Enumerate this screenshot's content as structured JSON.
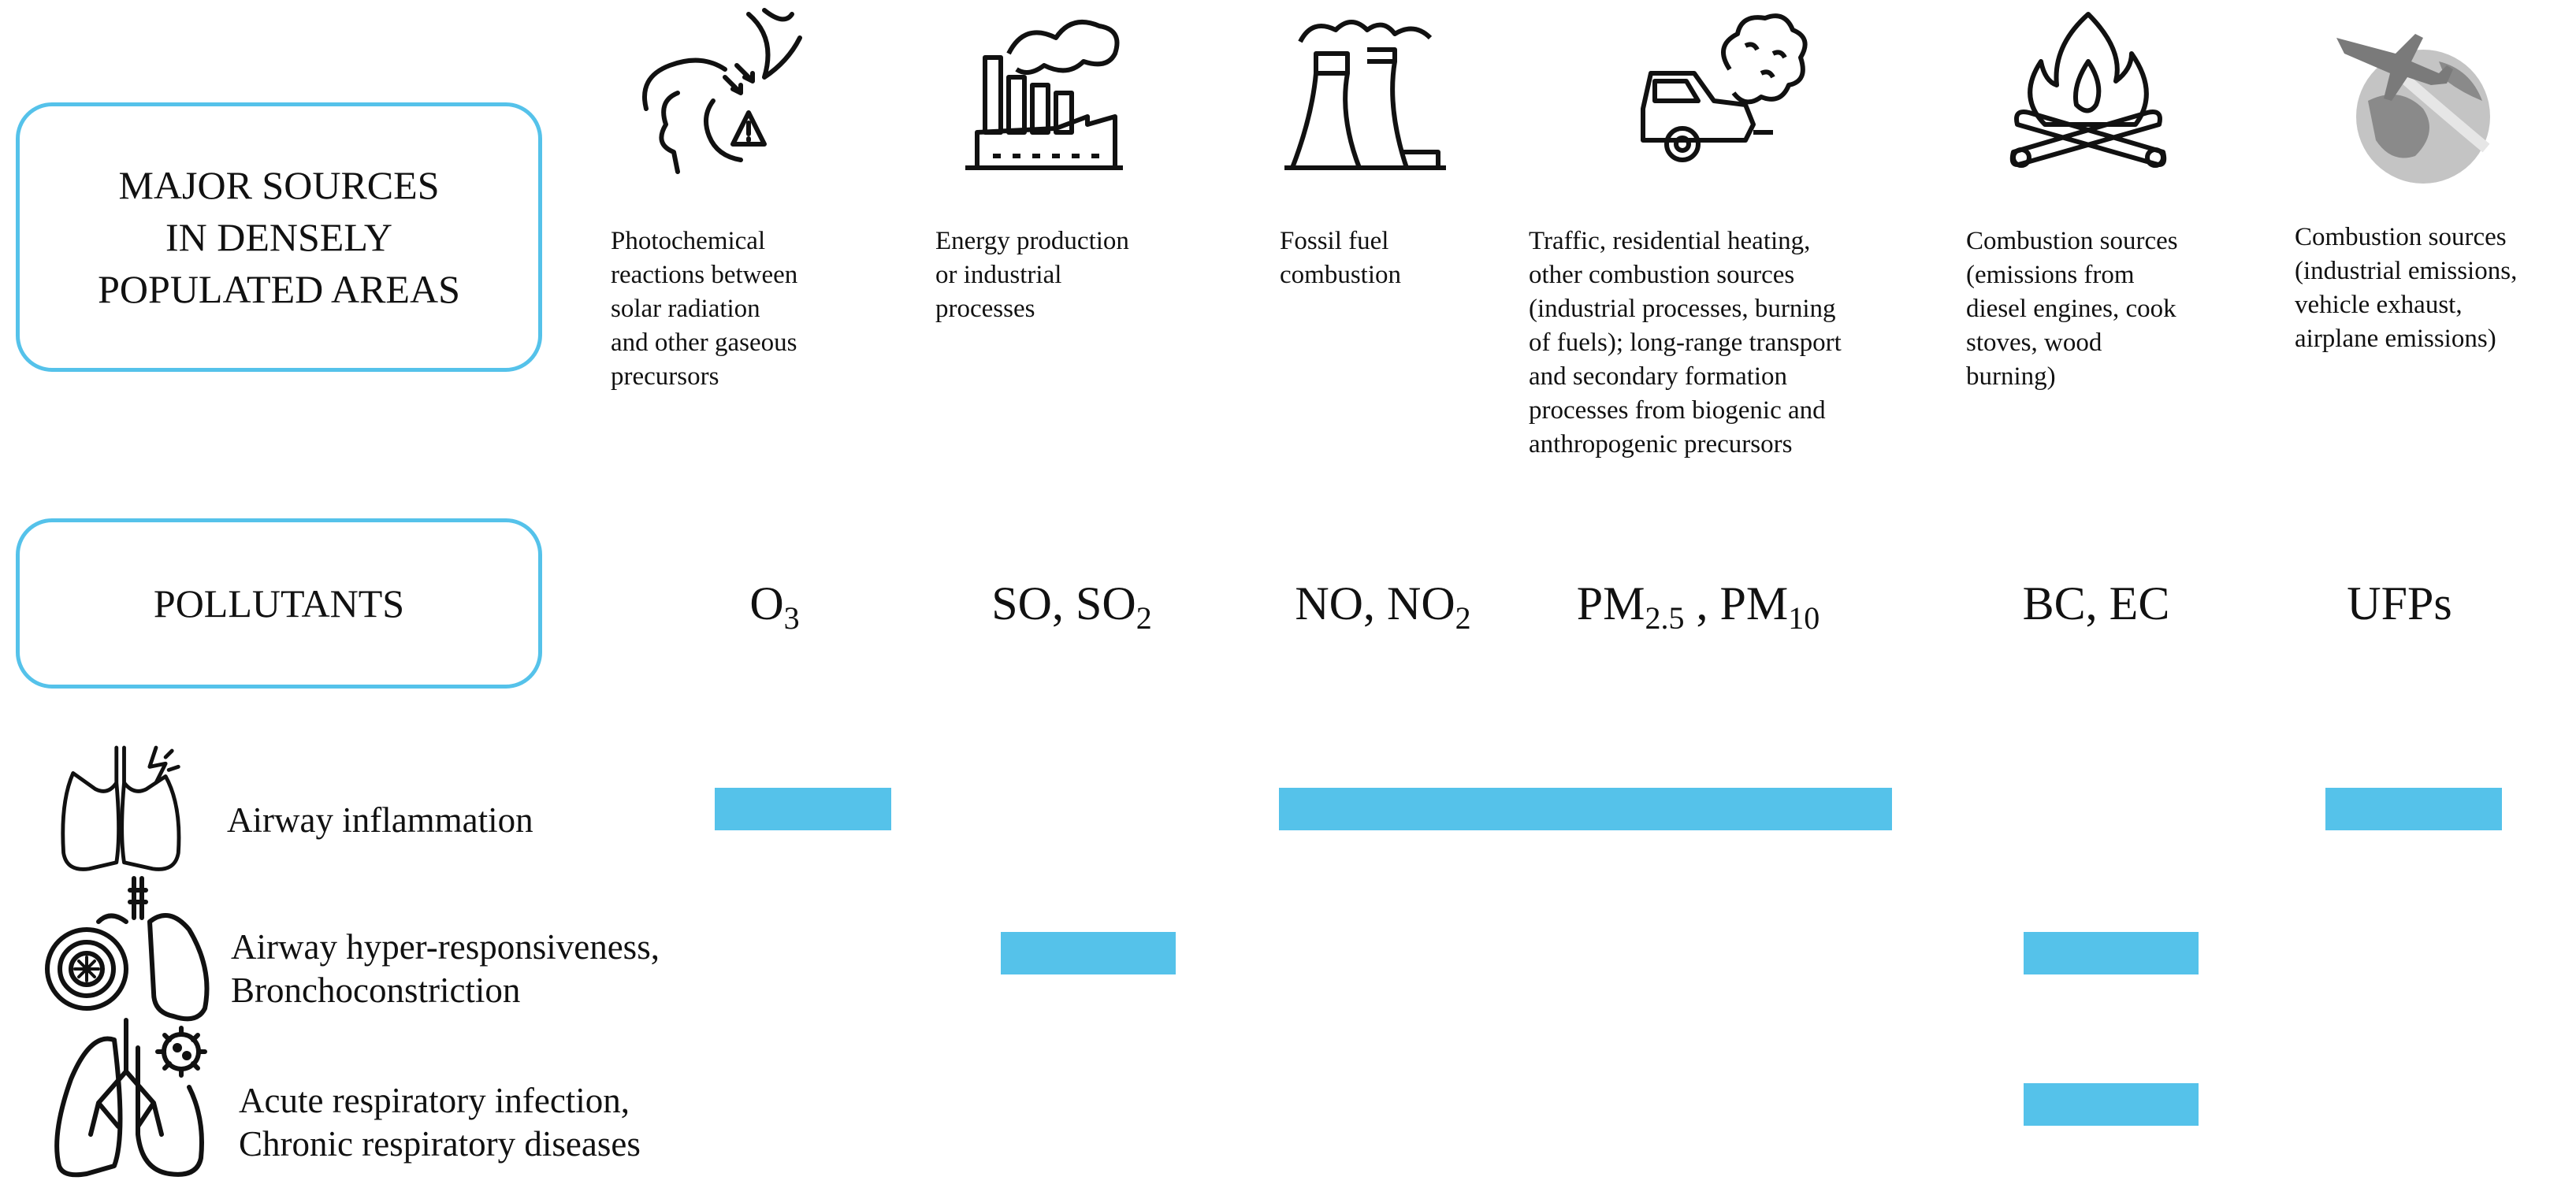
{
  "sources_box": {
    "title": "MAJOR SOURCES\nIN DENSELY\nPOPULATED AREAS"
  },
  "pollutants_box": {
    "title": "POLLUTANTS"
  },
  "sources": [
    {
      "icon": "sun-smog-face-icon",
      "text": "Photochemical\nreactions between\nsolar radiation\nand other gaseous\nprecursors"
    },
    {
      "icon": "factory-icon",
      "text": "Energy production\nor industrial\nprocesses"
    },
    {
      "icon": "cooling-tower-icon",
      "text": "Fossil fuel\ncombustion"
    },
    {
      "icon": "car-exhaust-icon",
      "text": "Traffic, residential heating,\nother combustion sources\n(industrial processes, burning\nof fuels); long-range transport\nand secondary formation\nprocesses from biogenic and\nanthropogenic precursors"
    },
    {
      "icon": "campfire-icon",
      "text": "Combustion sources\n(emissions from\ndiesel engines, cook\nstoves, wood\nburning)"
    },
    {
      "icon": "airplane-globe-icon",
      "text": "Combustion sources\n(industrial emissions,\nvehicle exhaust,\nairplane emissions)"
    }
  ],
  "pollutants": [
    {
      "text": "O",
      "sub": "3"
    },
    {
      "text": "SO, SO",
      "sub": "2"
    },
    {
      "text": "NO, NO",
      "sub": "2"
    },
    {
      "pm1": "PM",
      "sub1": "2.5",
      "mid": " , PM",
      "sub2": "10"
    },
    {
      "text": "BC, EC"
    },
    {
      "text": "UFPs"
    }
  ],
  "effects": [
    {
      "icon": "lungs-lightning-icon",
      "text": "Airway inflammation"
    },
    {
      "icon": "lungs-constriction-icon",
      "text": "Airway hyper-responsiveness,\nBronchoconstriction"
    },
    {
      "icon": "lungs-virus-icon",
      "text": "Acute respiratory infection,\nChronic respiratory diseases"
    }
  ],
  "associations": [
    {
      "effect": "Airway inflammation",
      "pollutants": [
        "O3",
        "NO, NO2",
        "PM2.5, PM10",
        "UFPs"
      ]
    },
    {
      "effect": "Airway hyper-responsiveness, Bronchoconstriction",
      "pollutants": [
        "SO, SO2",
        "BC, EC"
      ]
    },
    {
      "effect": "Acute respiratory infection, Chronic respiratory diseases",
      "pollutants": [
        "BC, EC"
      ]
    }
  ],
  "colors": {
    "accent": "#55c2ea",
    "text": "#111111",
    "icon_gray": "#9a9a9a"
  }
}
